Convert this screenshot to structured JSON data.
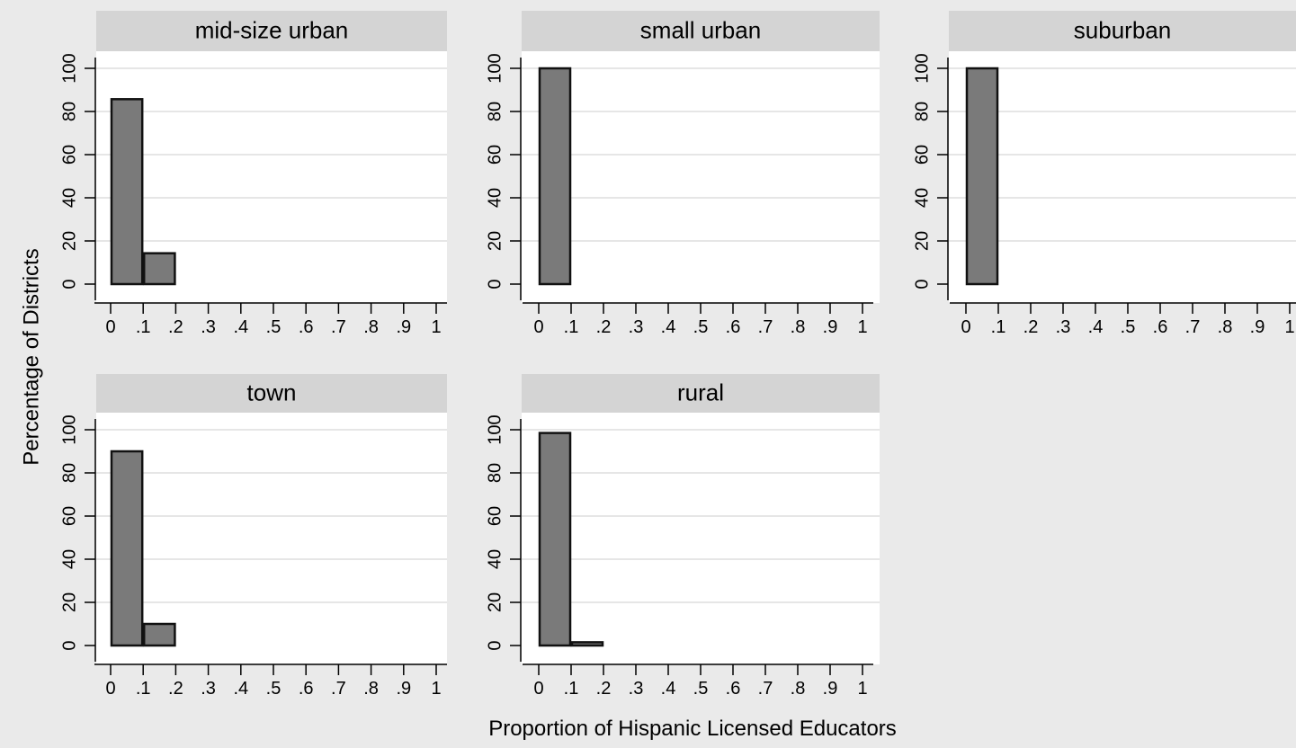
{
  "chart_data": {
    "type": "bar",
    "layout": "small-multiples",
    "xlabel": "Proportion of Hispanic Licensed Educators",
    "ylabel": "Percentage of Districts",
    "xlim": [
      0,
      1
    ],
    "ylim": [
      0,
      100
    ],
    "x_tick_labels": [
      "0",
      ".1",
      ".2",
      ".3",
      ".4",
      ".5",
      ".6",
      ".7",
      ".8",
      ".9",
      "1"
    ],
    "y_tick_labels": [
      "0",
      "20",
      "40",
      "60",
      "80",
      "100"
    ],
    "bin_width": 0.1,
    "grid": true,
    "colors": {
      "background": "#eaeaea",
      "plot_area": "#ffffff",
      "title_bar": "#d4d4d4",
      "bar_fill": "#7a7a7a",
      "bar_edge": "#111111",
      "grid": "#e6e6e6"
    },
    "panels": [
      {
        "title": "mid-size urban",
        "bins": [
          0,
          0.1
        ],
        "values": [
          85.7,
          14.3
        ]
      },
      {
        "title": "small urban",
        "bins": [
          0
        ],
        "values": [
          100
        ]
      },
      {
        "title": "suburban",
        "bins": [
          0
        ],
        "values": [
          100
        ]
      },
      {
        "title": "town",
        "bins": [
          0,
          0.1
        ],
        "values": [
          90,
          10
        ]
      },
      {
        "title": "rural",
        "bins": [
          0,
          0.1
        ],
        "values": [
          98.5,
          1.5
        ]
      }
    ]
  }
}
